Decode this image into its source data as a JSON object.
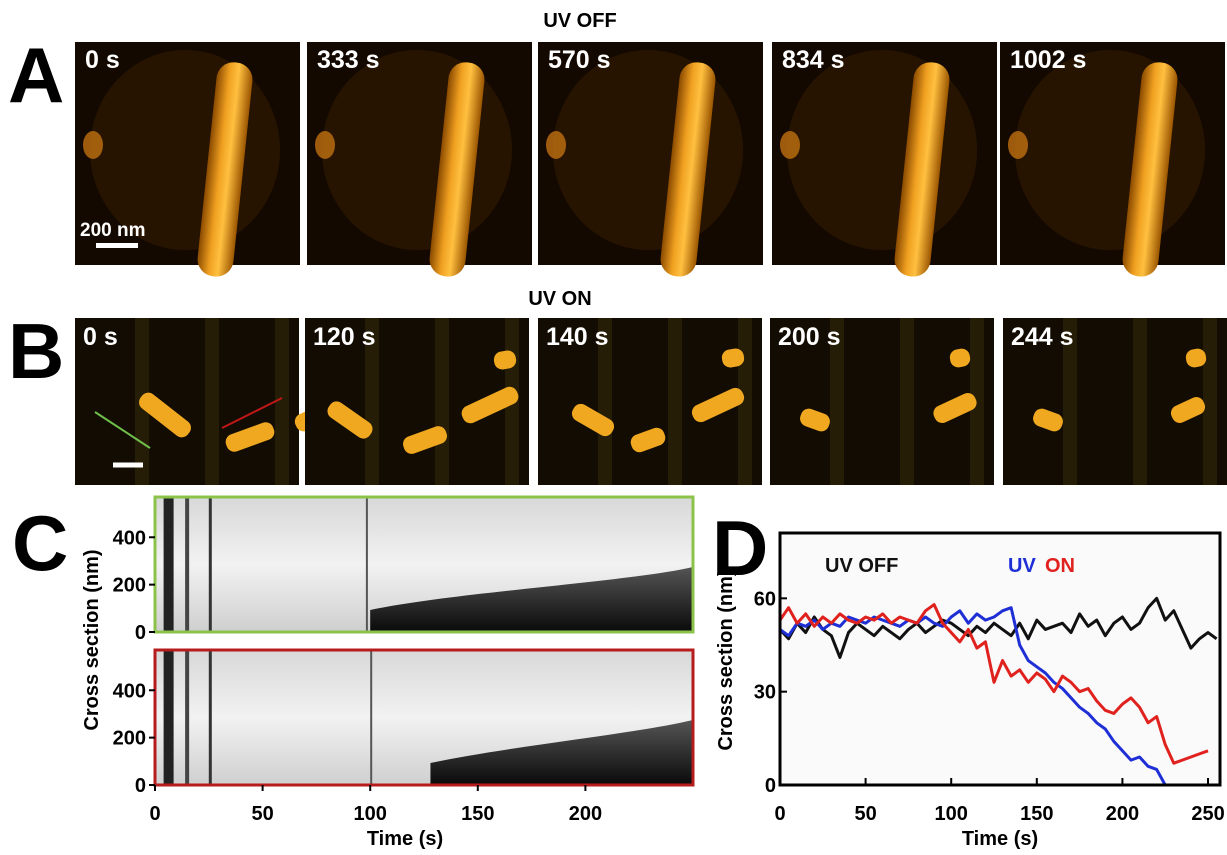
{
  "figure": {
    "panel_a": {
      "letter": "A",
      "title": "UV OFF",
      "frames": [
        "0 s",
        "333 s",
        "570 s",
        "834 s",
        "1002 s"
      ],
      "scale_bar": "200 nm"
    },
    "panel_b": {
      "letter": "B",
      "title": "UV ON",
      "frames": [
        "0 s",
        "120 s",
        "140 s",
        "200 s",
        "244 s"
      ]
    },
    "panel_c": {
      "letter": "C"
    },
    "panel_d": {
      "letter": "D"
    }
  },
  "chart_data": [
    {
      "type": "kymograph",
      "xlabel": "Time (s)",
      "ylabel": "Cross section (nm)",
      "xlim": [
        0,
        250
      ],
      "ylim": [
        0,
        570
      ],
      "xticks": [
        0,
        50,
        100,
        150,
        200
      ],
      "yticks": [
        0,
        200,
        400
      ],
      "frame_colors": [
        "#8bc34a",
        "#b71c1c"
      ]
    },
    {
      "type": "line",
      "xlabel": "Time (s)",
      "ylabel": "Cross section (nm)",
      "xlim": [
        0,
        257
      ],
      "ylim": [
        0,
        81
      ],
      "xticks": [
        0,
        50,
        100,
        150,
        200,
        250
      ],
      "yticks": [
        0,
        30,
        60
      ],
      "series": [
        {
          "name": "UV OFF",
          "color": "#111111",
          "x": [
            0,
            5,
            10,
            15,
            20,
            25,
            30,
            35,
            40,
            45,
            50,
            55,
            60,
            65,
            70,
            75,
            80,
            85,
            90,
            95,
            100,
            105,
            110,
            115,
            120,
            125,
            130,
            135,
            140,
            145,
            150,
            155,
            160,
            165,
            170,
            175,
            180,
            185,
            190,
            195,
            200,
            205,
            210,
            215,
            220,
            225,
            230,
            235,
            240,
            245,
            250,
            255
          ],
          "values": [
            50,
            47,
            52,
            49,
            54,
            50,
            48,
            41,
            49,
            52,
            50,
            48,
            51,
            49,
            47,
            50,
            52,
            49,
            51,
            53,
            52,
            50,
            48,
            51,
            49,
            52,
            50,
            48,
            52,
            47,
            53,
            50,
            51,
            52,
            49,
            55,
            51,
            53,
            48,
            52,
            54,
            50,
            52,
            57,
            60,
            53,
            56,
            50,
            44,
            47,
            49,
            47
          ]
        },
        {
          "name": "UV",
          "color": "#1f2fd6",
          "x": [
            0,
            5,
            10,
            15,
            20,
            25,
            30,
            35,
            40,
            45,
            50,
            55,
            60,
            65,
            70,
            75,
            80,
            85,
            90,
            95,
            100,
            105,
            110,
            115,
            120,
            125,
            130,
            135,
            140,
            145,
            150,
            155,
            160,
            165,
            170,
            175,
            180,
            185,
            190,
            195,
            200,
            205,
            210,
            215,
            220,
            225
          ],
          "values": [
            50,
            48,
            52,
            51,
            53,
            50,
            52,
            51,
            54,
            53,
            52,
            54,
            53,
            52,
            51,
            53,
            52,
            54,
            52,
            51,
            54,
            56,
            52,
            55,
            53,
            54,
            56,
            57,
            45,
            40,
            38,
            36,
            33,
            31,
            28,
            25,
            23,
            20,
            18,
            14,
            11,
            8,
            9,
            6,
            5,
            0
          ]
        },
        {
          "name": "ON",
          "color": "#e0221f",
          "x": [
            0,
            5,
            10,
            15,
            20,
            25,
            30,
            35,
            40,
            45,
            50,
            55,
            60,
            65,
            70,
            75,
            80,
            85,
            90,
            95,
            100,
            105,
            110,
            115,
            120,
            125,
            130,
            135,
            140,
            145,
            150,
            155,
            160,
            165,
            170,
            175,
            180,
            185,
            190,
            195,
            200,
            205,
            210,
            215,
            220,
            225,
            230,
            235,
            240,
            245,
            250
          ],
          "values": [
            53,
            57,
            52,
            55,
            51,
            54,
            52,
            55,
            53,
            52,
            54,
            53,
            55,
            52,
            54,
            53,
            52,
            56,
            58,
            52,
            49,
            46,
            50,
            44,
            46,
            33,
            40,
            35,
            37,
            33,
            36,
            34,
            30,
            35,
            33,
            30,
            31,
            27,
            24,
            23,
            26,
            28,
            25,
            20,
            22,
            13,
            7,
            8,
            9,
            10,
            11
          ]
        }
      ]
    }
  ]
}
